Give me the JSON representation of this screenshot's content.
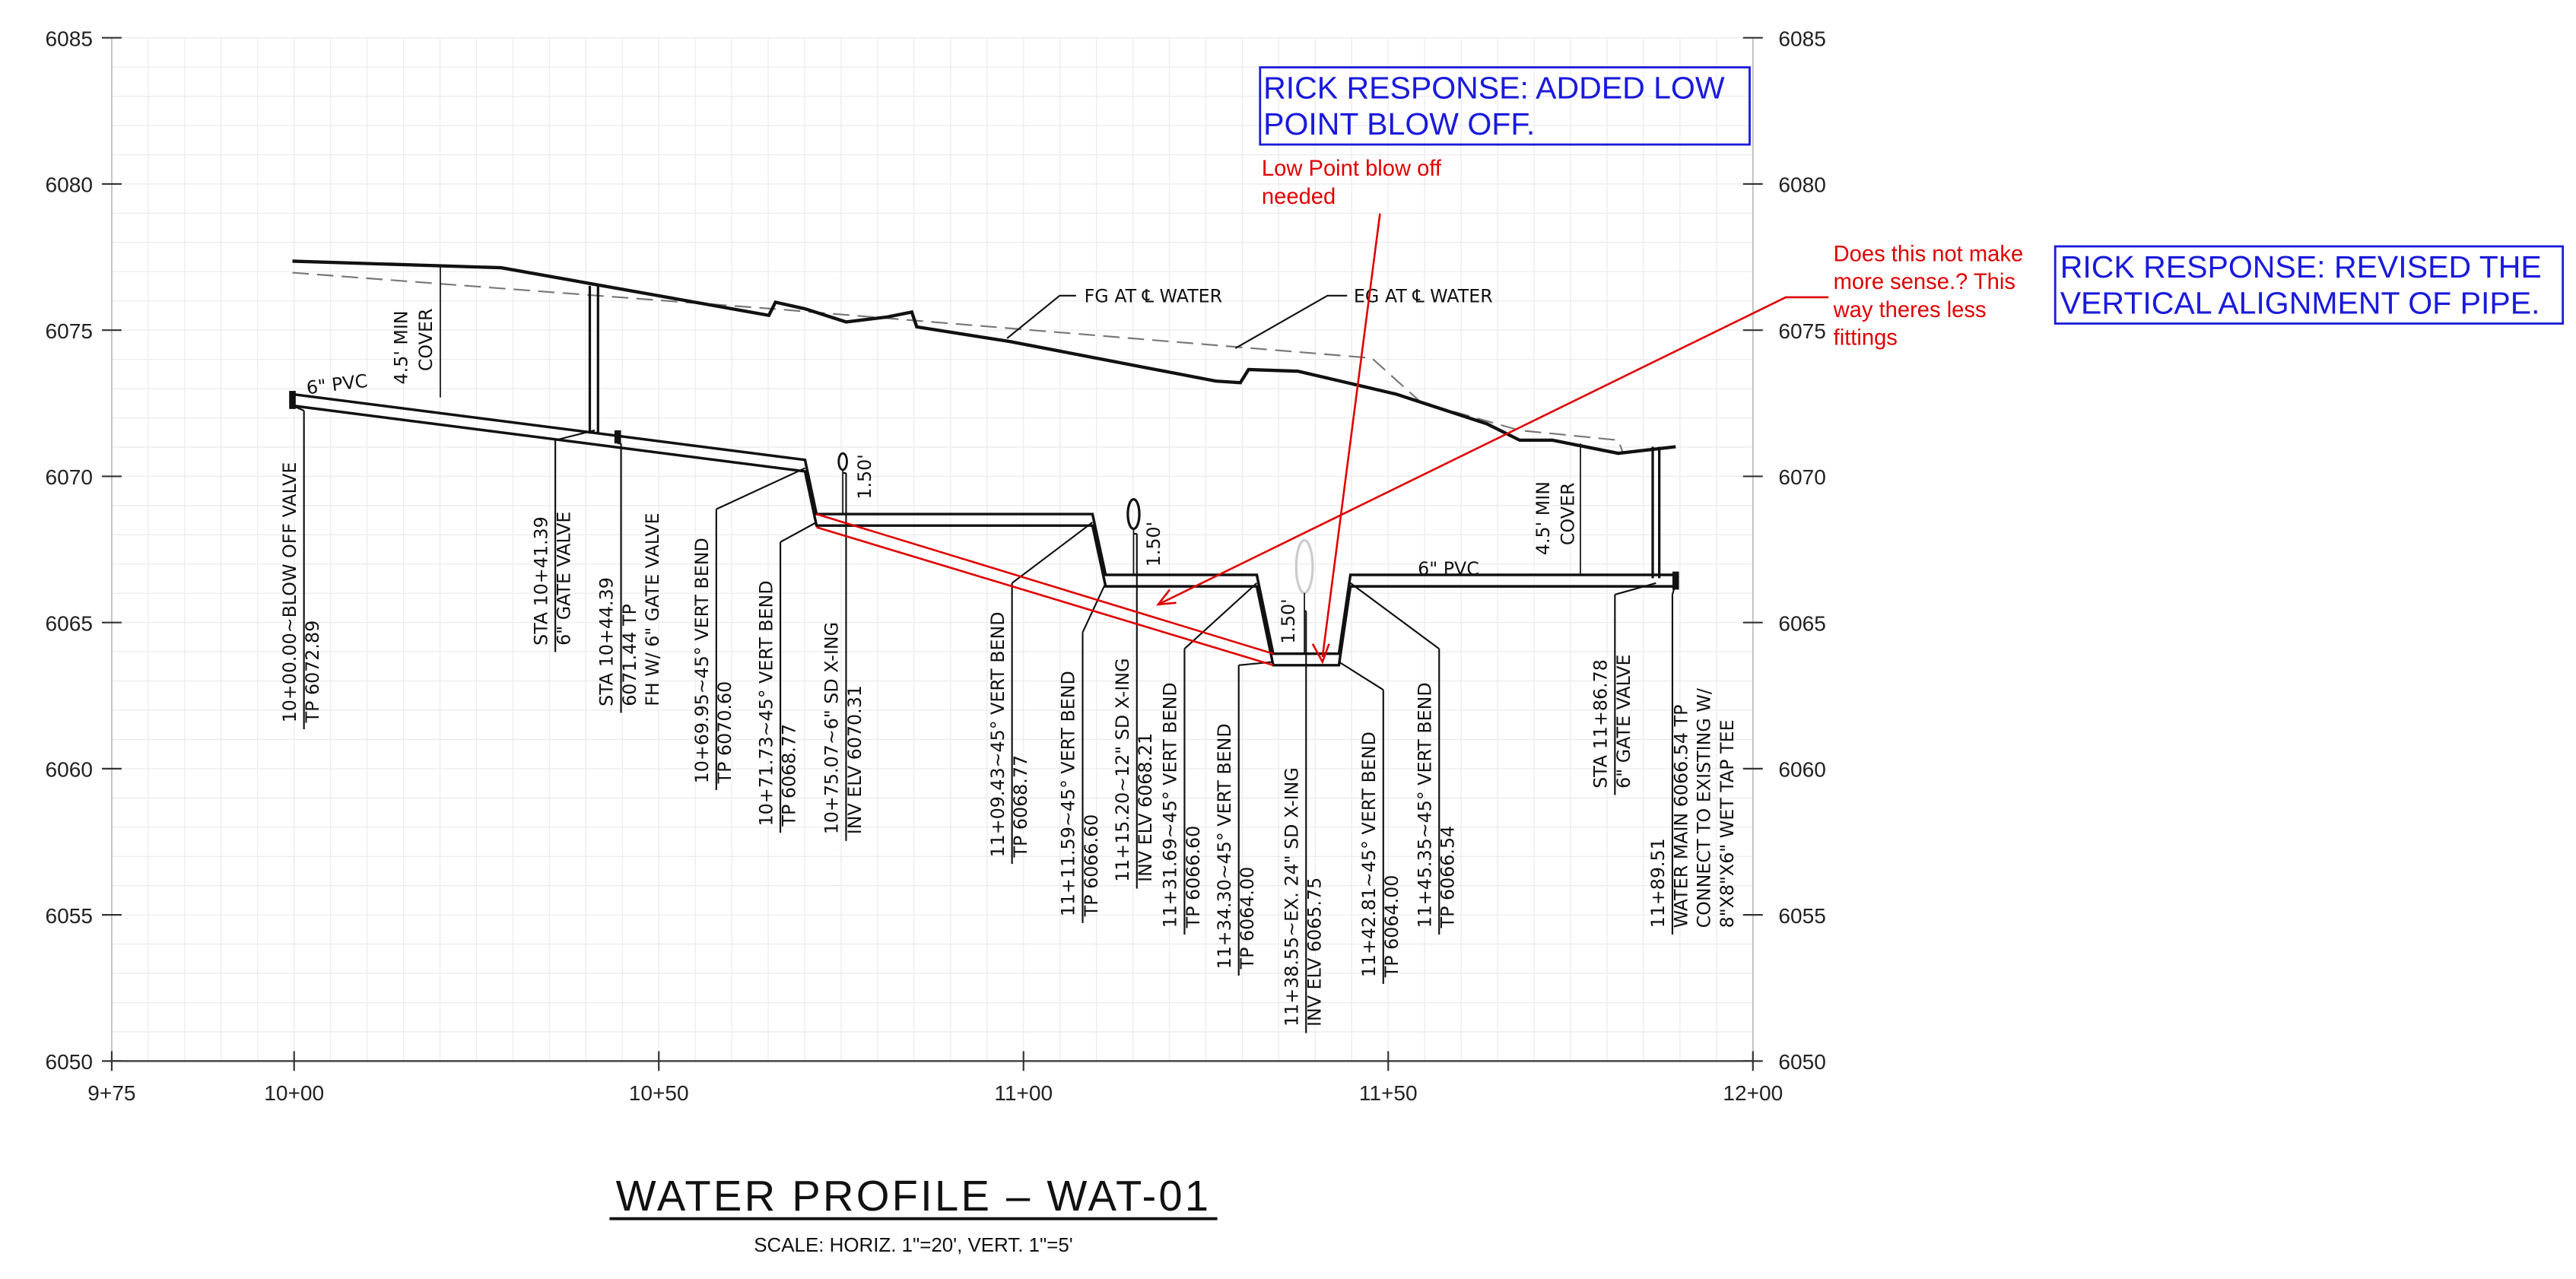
{
  "y_axis_left": [
    "6085",
    "6080",
    "6075",
    "6070",
    "6065",
    "6060",
    "6055",
    "6050"
  ],
  "y_axis_right": [
    "6085",
    "6080",
    "6075",
    "6070",
    "6065",
    "6060",
    "6055",
    "6050"
  ],
  "x_axis": [
    "9+75",
    "10+00",
    "10+50",
    "11+00",
    "11+50",
    "12+00"
  ],
  "labels": {
    "pvc_left": "6\" PVC",
    "pvc_right": "6\" PVC",
    "fg": "FG AT ℄ WATER",
    "eg": "EG AT ℄ WATER",
    "cover_left": [
      "4.5' MIN",
      "COVER"
    ],
    "cover_right": [
      "4.5' MIN",
      "COVER"
    ],
    "clearances": [
      "1.50'",
      "1.50'",
      "1.50'"
    ]
  },
  "callouts": [
    {
      "lines": [
        "10+00.00~BLOW OFF VALVE",
        "TP 6072.89"
      ]
    },
    {
      "lines": [
        "STA 10+41.39",
        "6\" GATE VALVE"
      ]
    },
    {
      "lines": [
        "STA 10+44.39",
        "6071.44 TP",
        "FH W/ 6\" GATE VALVE"
      ]
    },
    {
      "lines": [
        "10+69.95~45° VERT BEND",
        "TP 6070.60"
      ]
    },
    {
      "lines": [
        "10+71.73~45° VERT BEND",
        "TP 6068.77"
      ]
    },
    {
      "lines": [
        "10+75.07~6\" SD X-ING",
        "INV ELV 6070.31"
      ]
    },
    {
      "lines": [
        "11+09.43~45° VERT BEND",
        "TP 6068.77"
      ]
    },
    {
      "lines": [
        "11+11.59~45° VERT BEND",
        "TP 6066.60"
      ]
    },
    {
      "lines": [
        "11+15.20~12\" SD X-ING",
        "INV ELV 6068.21"
      ]
    },
    {
      "lines": [
        "11+31.69~45° VERT BEND",
        "TP 6066.60"
      ]
    },
    {
      "lines": [
        "11+34.30~45° VERT BEND",
        "TP 6064.00"
      ]
    },
    {
      "lines": [
        "11+38.55~EX. 24\" SD X-ING",
        "INV ELV 6065.75"
      ]
    },
    {
      "lines": [
        "11+42.81~45° VERT BEND",
        "TP 6064.00"
      ]
    },
    {
      "lines": [
        "11+45.35~45° VERT BEND",
        "TP 6066.54"
      ]
    },
    {
      "lines": [
        "STA 11+86.78",
        "6\" GATE VALVE"
      ]
    },
    {
      "lines": [
        "11+89.51",
        "WATER MAIN 6066.54 TP",
        "CONNECT TO EXISTING W/",
        "8\"X8\"X6\" WET TAP TEE"
      ]
    }
  ],
  "review": {
    "response_1": [
      "RICK RESPONSE: ADDED LOW",
      "POINT BLOW OFF."
    ],
    "comment_1": [
      "Low Point blow off",
      "needed"
    ],
    "comment_2": [
      "Does this not make",
      "more sense.? This",
      "way theres less",
      "fittings"
    ],
    "response_2": [
      "RICK RESPONSE: REVISED THE",
      "VERTICAL ALIGNMENT OF PIPE."
    ]
  },
  "title": "WATER PROFILE – WAT-01",
  "scale": "SCALE: HORIZ. 1\"=20', VERT. 1\"=5'"
}
